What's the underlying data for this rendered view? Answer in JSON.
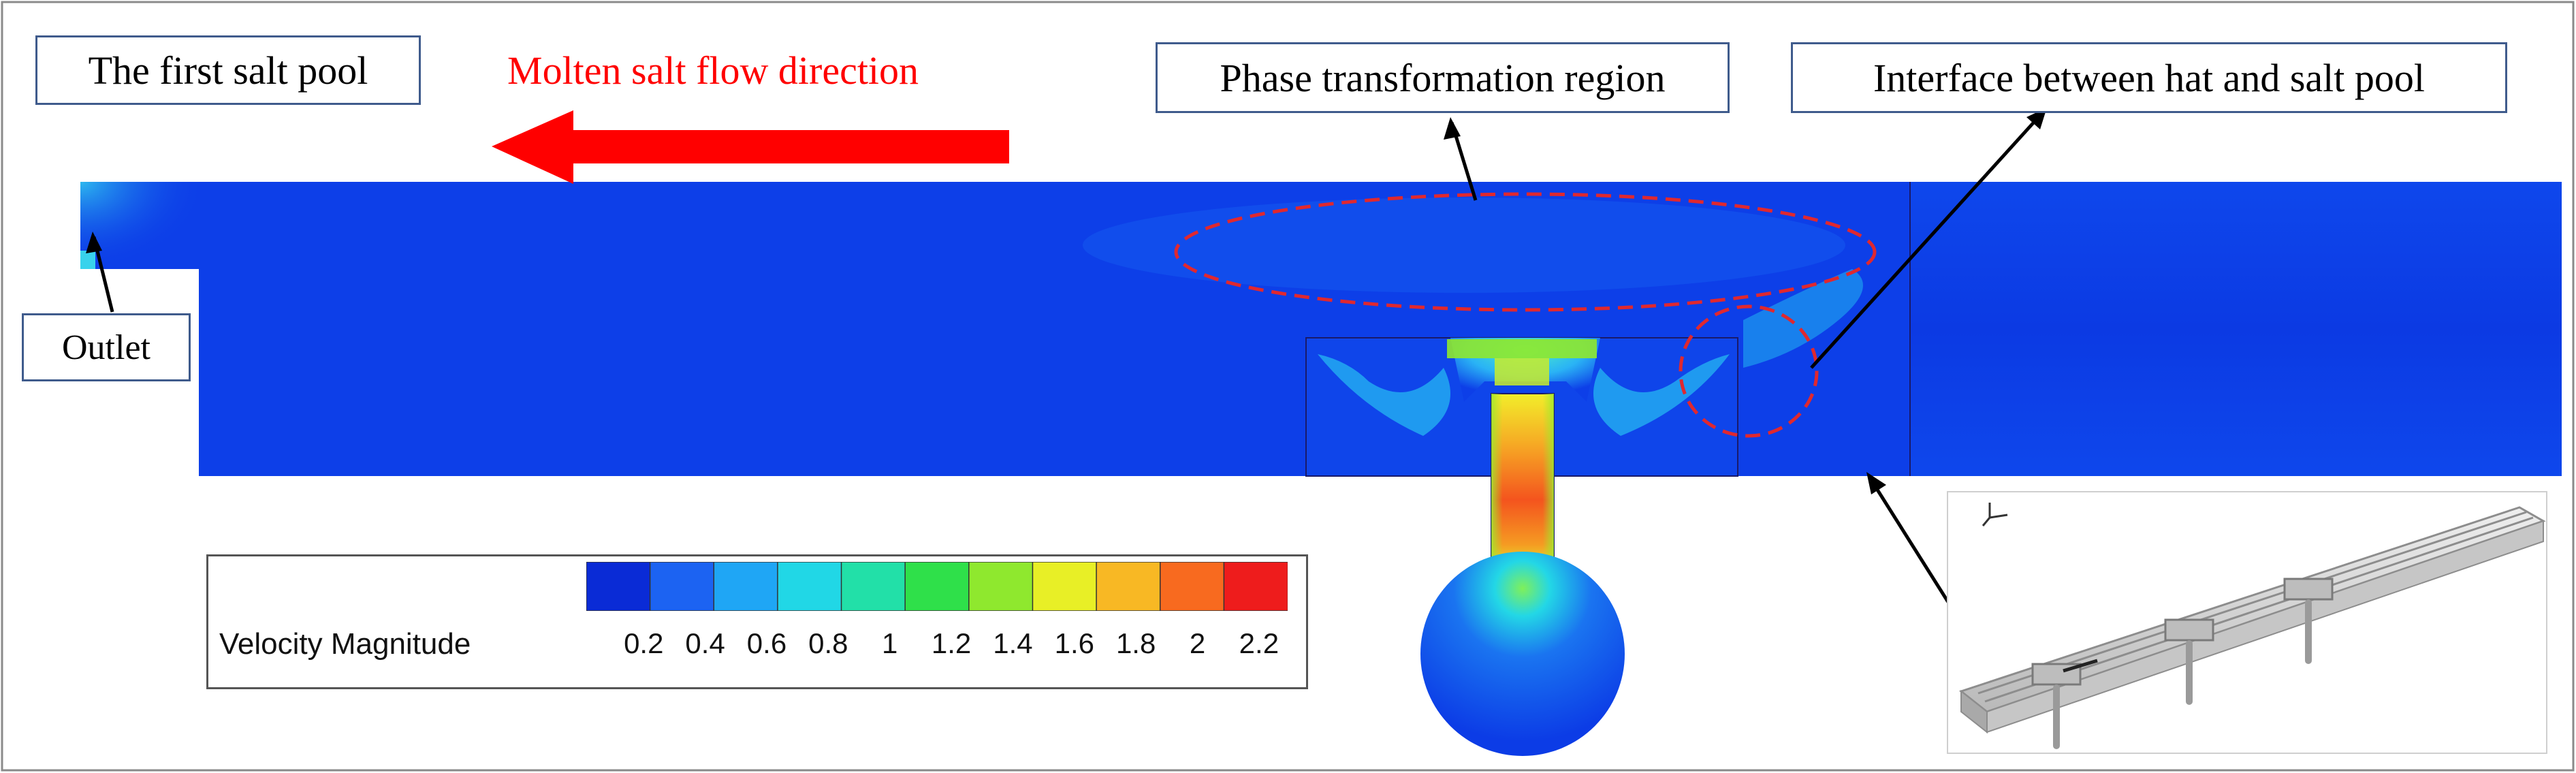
{
  "labels": {
    "first_salt_pool": "The first salt pool",
    "flow_direction": "Molten salt flow direction",
    "phase_region": "Phase transformation region",
    "interface": "Interface between hat and salt pool",
    "outlet": "Outlet"
  },
  "legend": {
    "title": "Velocity Magnitude",
    "ticks": [
      "0.2",
      "0.4",
      "0.6",
      "0.8",
      "1",
      "1.2",
      "1.4",
      "1.6",
      "1.8",
      "2",
      "2.2"
    ],
    "colorbar": [
      "#0a2bd6",
      "#1c63f2",
      "#1fa6f5",
      "#21d7e6",
      "#22e0a8",
      "#2fe04a",
      "#8fe82e",
      "#e8ef26",
      "#f8b824",
      "#f86a1f",
      "#ee1c1c"
    ]
  },
  "colors": {
    "field_blue": "#0d3fe8",
    "arrow_red": "#ff0000",
    "flow_text_red": "#ff0000",
    "box_border": "#3f5b8c",
    "ellipse_dash": "#e0282f"
  },
  "icons": {
    "flow_arrow": "left-arrow-icon",
    "axis": "axis-triad-icon"
  }
}
